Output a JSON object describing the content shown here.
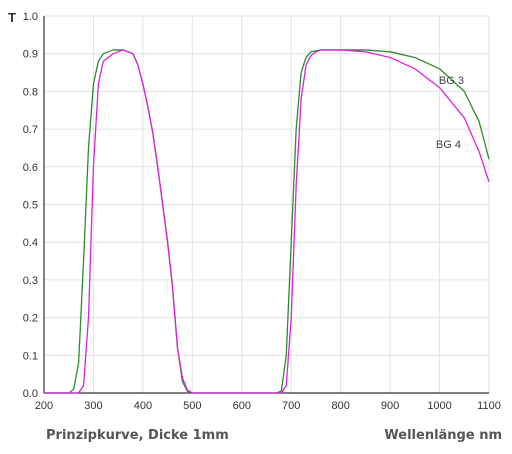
{
  "chart_data": {
    "type": "line",
    "ylabel": "T",
    "xlim": [
      200,
      1100
    ],
    "ylim": [
      0.0,
      1.0
    ],
    "x_ticks": [
      200,
      300,
      400,
      500,
      600,
      700,
      800,
      900,
      1000,
      1100
    ],
    "y_ticks": [
      "0.0",
      "0.1",
      "0.2",
      "0.3",
      "0.4",
      "0.5",
      "0.6",
      "0.7",
      "0.8",
      "0.9",
      "1.0"
    ],
    "grid": true,
    "caption": "Prinzipkurve, Dicke 1mm",
    "xlabel": "Wellenlänge nm",
    "series": [
      {
        "name": "BG 3",
        "color": "#2e8b2e",
        "x": [
          200,
          250,
          260,
          270,
          280,
          290,
          300,
          310,
          320,
          340,
          360,
          380,
          390,
          400,
          410,
          420,
          430,
          440,
          450,
          460,
          470,
          480,
          490,
          500,
          520,
          600,
          670,
          680,
          690,
          700,
          710,
          720,
          730,
          740,
          760,
          800,
          850,
          900,
          950,
          1000,
          1050,
          1080,
          1100
        ],
        "y": [
          0.0,
          0.0,
          0.01,
          0.08,
          0.35,
          0.65,
          0.82,
          0.88,
          0.9,
          0.91,
          0.91,
          0.9,
          0.87,
          0.82,
          0.76,
          0.69,
          0.6,
          0.5,
          0.4,
          0.28,
          0.12,
          0.03,
          0.005,
          0.0,
          0.0,
          0.0,
          0.0,
          0.005,
          0.1,
          0.4,
          0.7,
          0.85,
          0.89,
          0.905,
          0.91,
          0.91,
          0.91,
          0.905,
          0.89,
          0.86,
          0.8,
          0.72,
          0.62
        ]
      },
      {
        "name": "BG 4",
        "color": "#e020e0",
        "x": [
          200,
          270,
          280,
          290,
          300,
          310,
          320,
          340,
          360,
          380,
          390,
          400,
          410,
          420,
          430,
          440,
          450,
          460,
          470,
          480,
          490,
          500,
          520,
          600,
          670,
          680,
          690,
          700,
          710,
          720,
          730,
          740,
          750,
          760,
          800,
          850,
          900,
          950,
          1000,
          1050,
          1080,
          1100
        ],
        "y": [
          0.0,
          0.0,
          0.02,
          0.2,
          0.6,
          0.82,
          0.88,
          0.9,
          0.91,
          0.9,
          0.87,
          0.82,
          0.76,
          0.69,
          0.6,
          0.5,
          0.4,
          0.28,
          0.12,
          0.04,
          0.008,
          0.0,
          0.0,
          0.0,
          0.0,
          0.0,
          0.02,
          0.2,
          0.55,
          0.78,
          0.87,
          0.895,
          0.905,
          0.91,
          0.91,
          0.905,
          0.89,
          0.86,
          0.81,
          0.73,
          0.64,
          0.56
        ]
      }
    ]
  }
}
